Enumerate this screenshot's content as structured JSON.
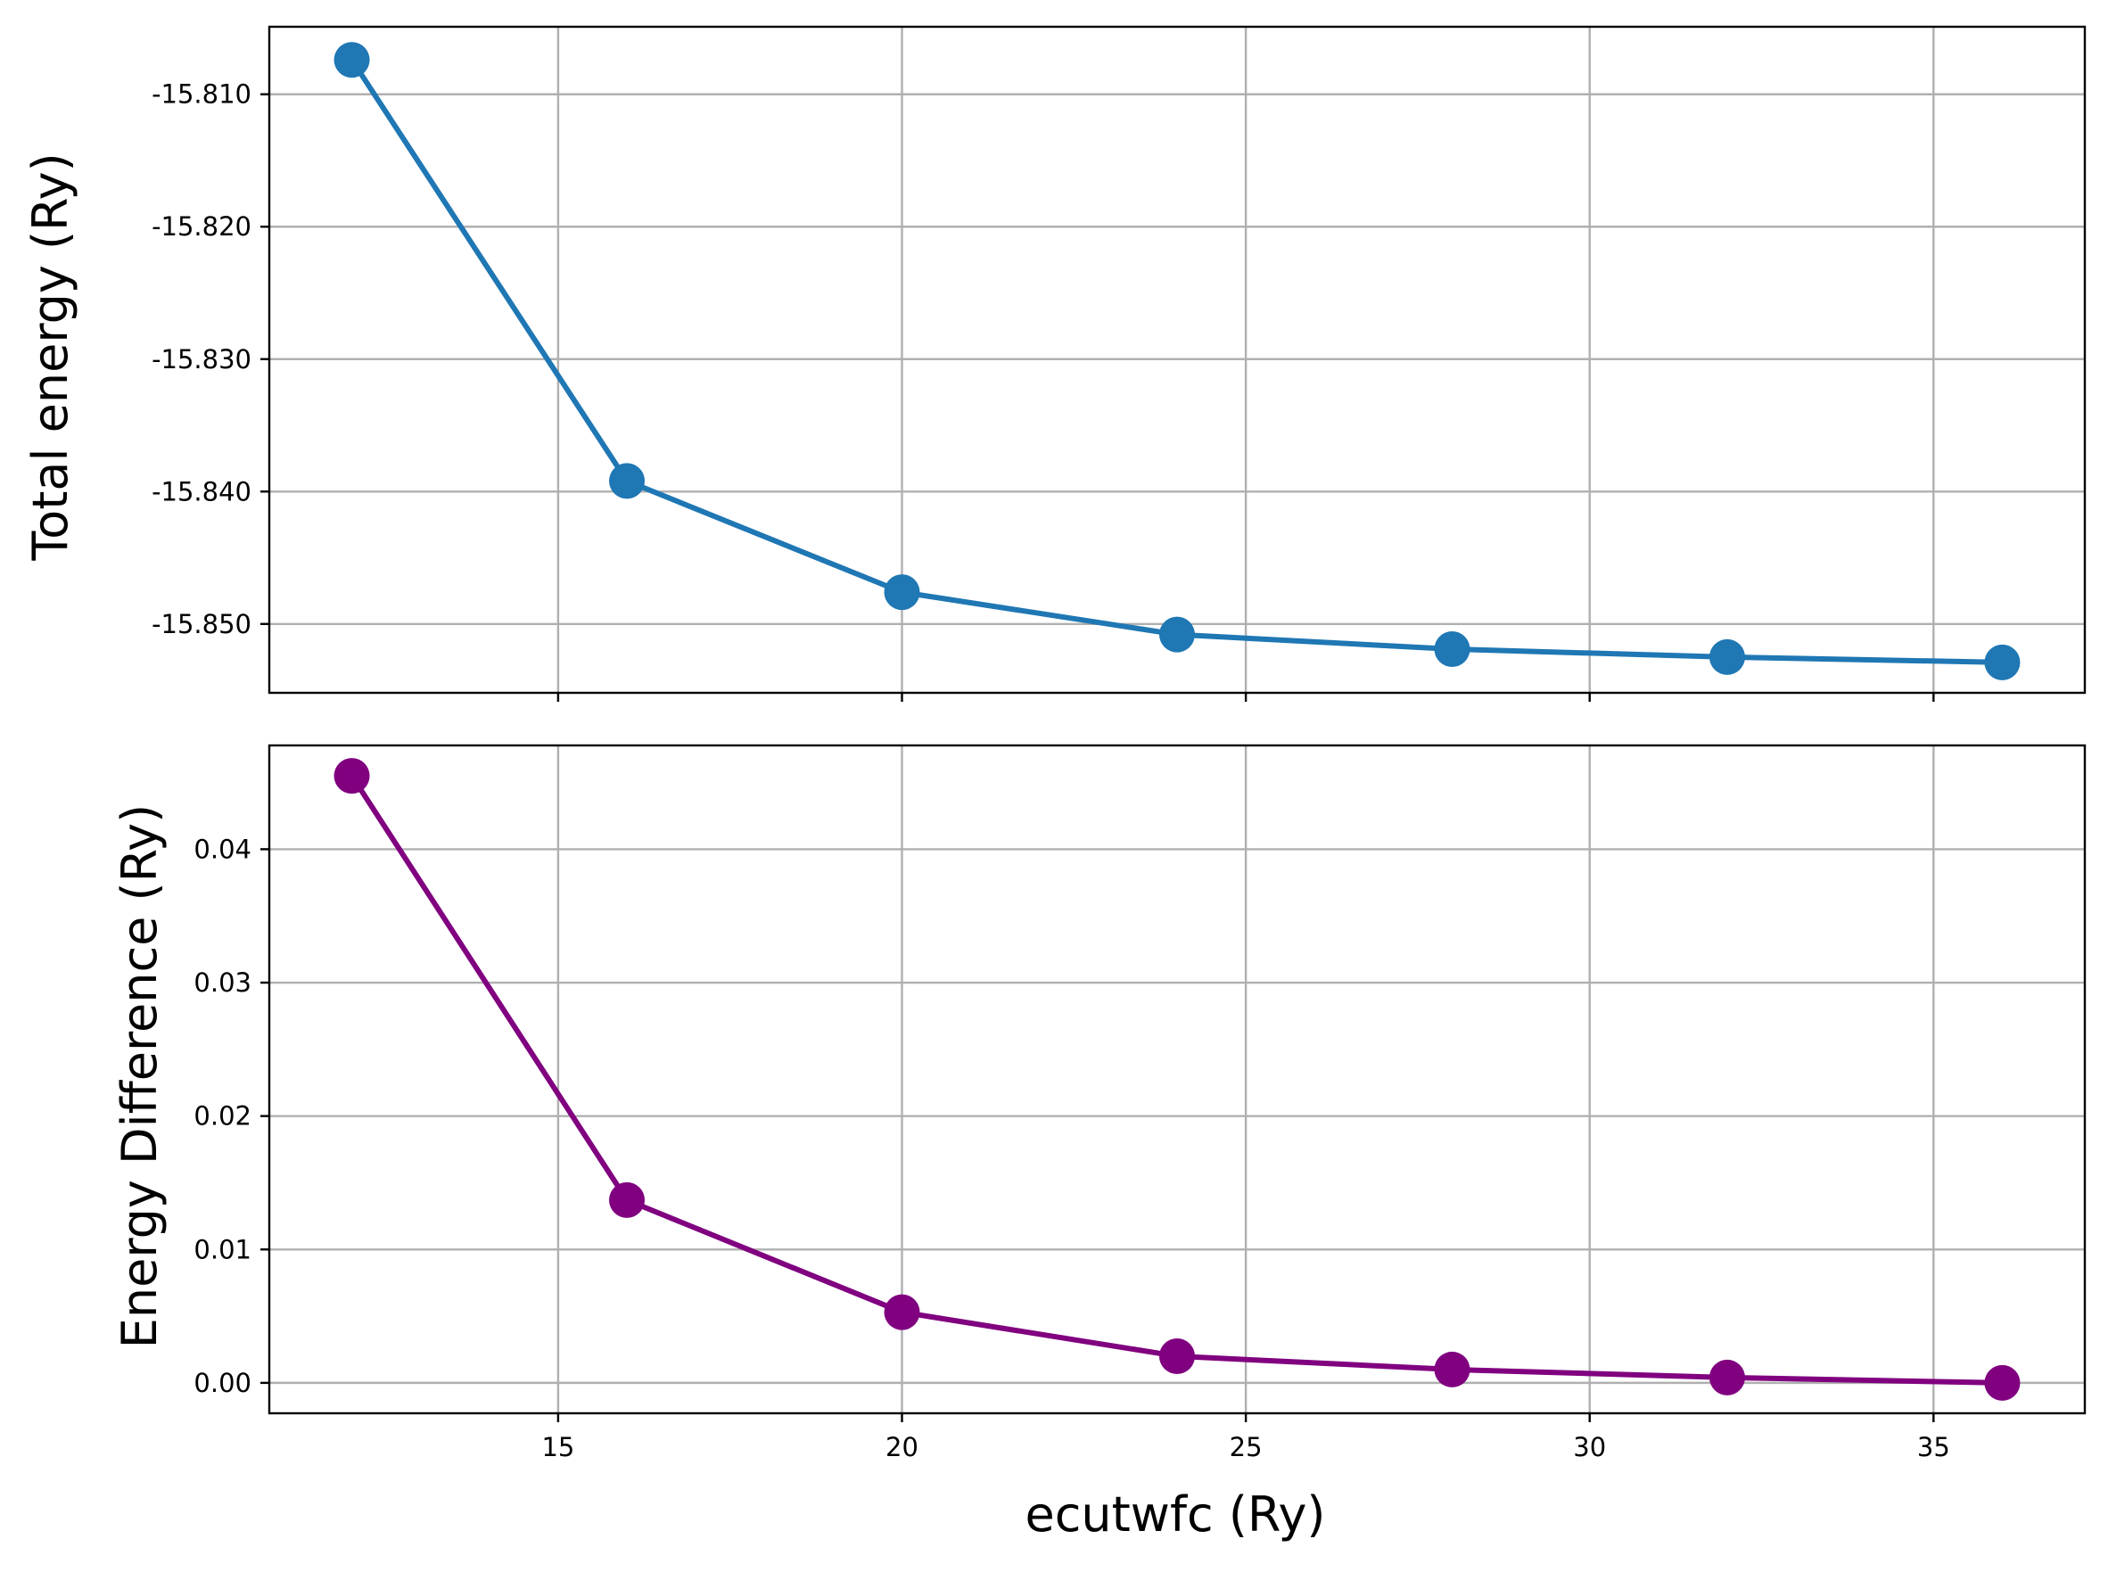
{
  "chart_data": [
    {
      "type": "line",
      "name": "total-energy",
      "ylabel": "Total energy (Ry)",
      "xlabel": "",
      "x": [
        12,
        16,
        20,
        24,
        28,
        32,
        36
      ],
      "series": [
        {
          "values": [
            -15.8074,
            -15.8392,
            -15.8476,
            -15.8508,
            -15.8519,
            -15.8525,
            -15.8529
          ],
          "color": "#1f77b4"
        }
      ],
      "xlim": [
        10.8,
        37.2
      ],
      "ylim": [
        -15.8552,
        -15.8049
      ],
      "xticks": [
        15,
        20,
        25,
        30,
        35
      ],
      "xtick_labels": [
        "",
        "",
        "",
        "",
        ""
      ],
      "yticks": [
        -15.81,
        -15.82,
        -15.83,
        -15.84,
        -15.85
      ],
      "ytick_labels": [
        "-15.810",
        "-15.820",
        "-15.830",
        "-15.840",
        "-15.850"
      ],
      "grid": true,
      "legend": "none"
    },
    {
      "type": "line",
      "name": "energy-difference",
      "ylabel": "Energy Difference (Ry)",
      "xlabel": "ecutwfc (Ry)",
      "x": [
        12,
        16,
        20,
        24,
        28,
        32,
        36
      ],
      "series": [
        {
          "values": [
            0.0455,
            0.0137,
            0.0053,
            0.002,
            0.001,
            0.0004,
            0.0
          ],
          "color": "#800080"
        }
      ],
      "xlim": [
        10.8,
        37.2
      ],
      "ylim": [
        -0.00228,
        0.04778
      ],
      "xticks": [
        15,
        20,
        25,
        30,
        35
      ],
      "xtick_labels": [
        "15",
        "20",
        "25",
        "30",
        "35"
      ],
      "yticks": [
        0.0,
        0.01,
        0.02,
        0.03,
        0.04
      ],
      "ytick_labels": [
        "0.00",
        "0.01",
        "0.02",
        "0.03",
        "0.04"
      ],
      "grid": true,
      "legend": "none"
    }
  ]
}
